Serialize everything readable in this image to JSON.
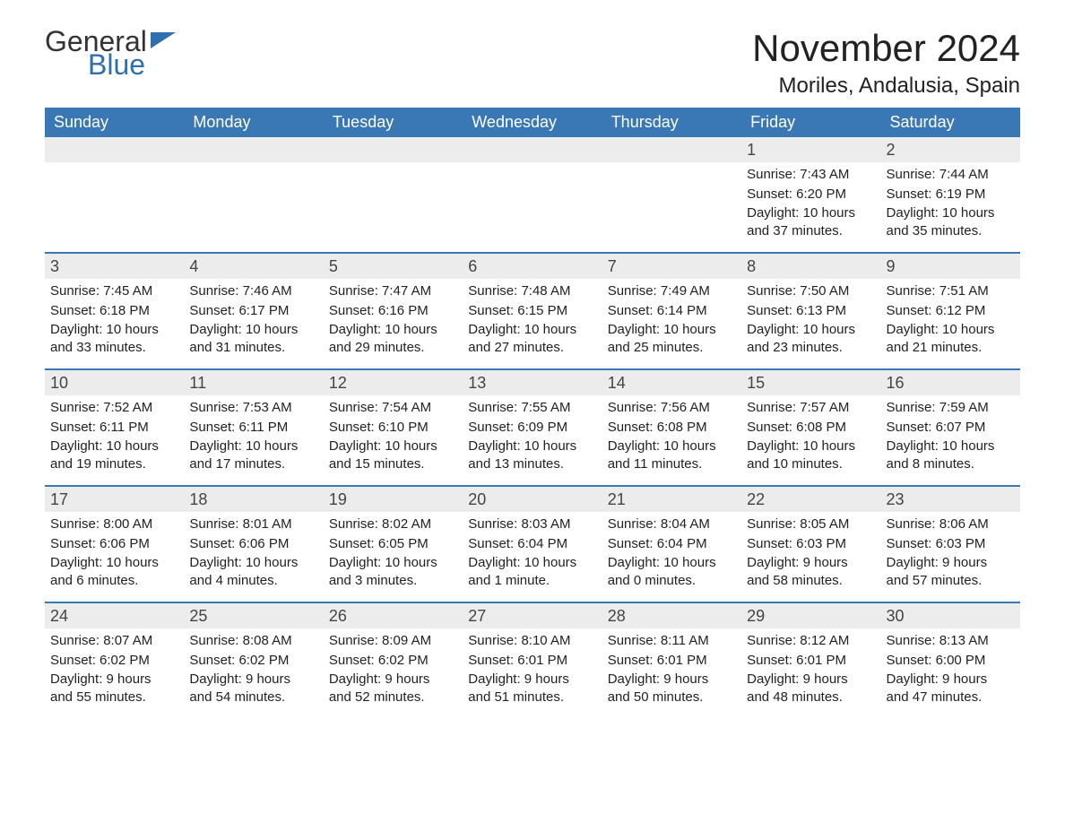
{
  "logo": {
    "word1": "General",
    "word2": "Blue"
  },
  "title": "November 2024",
  "location": "Moriles, Andalusia, Spain",
  "colors": {
    "header_bg": "#3a78b5",
    "header_text": "#ffffff",
    "daynum_bg": "#ececec",
    "row_divider": "#3a78b5",
    "logo_accent": "#2f6fb0"
  },
  "weekdays": [
    "Sunday",
    "Monday",
    "Tuesday",
    "Wednesday",
    "Thursday",
    "Friday",
    "Saturday"
  ],
  "weeks": [
    [
      null,
      null,
      null,
      null,
      null,
      {
        "n": "1",
        "sunrise": "Sunrise: 7:43 AM",
        "sunset": "Sunset: 6:20 PM",
        "daylight": "Daylight: 10 hours and 37 minutes."
      },
      {
        "n": "2",
        "sunrise": "Sunrise: 7:44 AM",
        "sunset": "Sunset: 6:19 PM",
        "daylight": "Daylight: 10 hours and 35 minutes."
      }
    ],
    [
      {
        "n": "3",
        "sunrise": "Sunrise: 7:45 AM",
        "sunset": "Sunset: 6:18 PM",
        "daylight": "Daylight: 10 hours and 33 minutes."
      },
      {
        "n": "4",
        "sunrise": "Sunrise: 7:46 AM",
        "sunset": "Sunset: 6:17 PM",
        "daylight": "Daylight: 10 hours and 31 minutes."
      },
      {
        "n": "5",
        "sunrise": "Sunrise: 7:47 AM",
        "sunset": "Sunset: 6:16 PM",
        "daylight": "Daylight: 10 hours and 29 minutes."
      },
      {
        "n": "6",
        "sunrise": "Sunrise: 7:48 AM",
        "sunset": "Sunset: 6:15 PM",
        "daylight": "Daylight: 10 hours and 27 minutes."
      },
      {
        "n": "7",
        "sunrise": "Sunrise: 7:49 AM",
        "sunset": "Sunset: 6:14 PM",
        "daylight": "Daylight: 10 hours and 25 minutes."
      },
      {
        "n": "8",
        "sunrise": "Sunrise: 7:50 AM",
        "sunset": "Sunset: 6:13 PM",
        "daylight": "Daylight: 10 hours and 23 minutes."
      },
      {
        "n": "9",
        "sunrise": "Sunrise: 7:51 AM",
        "sunset": "Sunset: 6:12 PM",
        "daylight": "Daylight: 10 hours and 21 minutes."
      }
    ],
    [
      {
        "n": "10",
        "sunrise": "Sunrise: 7:52 AM",
        "sunset": "Sunset: 6:11 PM",
        "daylight": "Daylight: 10 hours and 19 minutes."
      },
      {
        "n": "11",
        "sunrise": "Sunrise: 7:53 AM",
        "sunset": "Sunset: 6:11 PM",
        "daylight": "Daylight: 10 hours and 17 minutes."
      },
      {
        "n": "12",
        "sunrise": "Sunrise: 7:54 AM",
        "sunset": "Sunset: 6:10 PM",
        "daylight": "Daylight: 10 hours and 15 minutes."
      },
      {
        "n": "13",
        "sunrise": "Sunrise: 7:55 AM",
        "sunset": "Sunset: 6:09 PM",
        "daylight": "Daylight: 10 hours and 13 minutes."
      },
      {
        "n": "14",
        "sunrise": "Sunrise: 7:56 AM",
        "sunset": "Sunset: 6:08 PM",
        "daylight": "Daylight: 10 hours and 11 minutes."
      },
      {
        "n": "15",
        "sunrise": "Sunrise: 7:57 AM",
        "sunset": "Sunset: 6:08 PM",
        "daylight": "Daylight: 10 hours and 10 minutes."
      },
      {
        "n": "16",
        "sunrise": "Sunrise: 7:59 AM",
        "sunset": "Sunset: 6:07 PM",
        "daylight": "Daylight: 10 hours and 8 minutes."
      }
    ],
    [
      {
        "n": "17",
        "sunrise": "Sunrise: 8:00 AM",
        "sunset": "Sunset: 6:06 PM",
        "daylight": "Daylight: 10 hours and 6 minutes."
      },
      {
        "n": "18",
        "sunrise": "Sunrise: 8:01 AM",
        "sunset": "Sunset: 6:06 PM",
        "daylight": "Daylight: 10 hours and 4 minutes."
      },
      {
        "n": "19",
        "sunrise": "Sunrise: 8:02 AM",
        "sunset": "Sunset: 6:05 PM",
        "daylight": "Daylight: 10 hours and 3 minutes."
      },
      {
        "n": "20",
        "sunrise": "Sunrise: 8:03 AM",
        "sunset": "Sunset: 6:04 PM",
        "daylight": "Daylight: 10 hours and 1 minute."
      },
      {
        "n": "21",
        "sunrise": "Sunrise: 8:04 AM",
        "sunset": "Sunset: 6:04 PM",
        "daylight": "Daylight: 10 hours and 0 minutes."
      },
      {
        "n": "22",
        "sunrise": "Sunrise: 8:05 AM",
        "sunset": "Sunset: 6:03 PM",
        "daylight": "Daylight: 9 hours and 58 minutes."
      },
      {
        "n": "23",
        "sunrise": "Sunrise: 8:06 AM",
        "sunset": "Sunset: 6:03 PM",
        "daylight": "Daylight: 9 hours and 57 minutes."
      }
    ],
    [
      {
        "n": "24",
        "sunrise": "Sunrise: 8:07 AM",
        "sunset": "Sunset: 6:02 PM",
        "daylight": "Daylight: 9 hours and 55 minutes."
      },
      {
        "n": "25",
        "sunrise": "Sunrise: 8:08 AM",
        "sunset": "Sunset: 6:02 PM",
        "daylight": "Daylight: 9 hours and 54 minutes."
      },
      {
        "n": "26",
        "sunrise": "Sunrise: 8:09 AM",
        "sunset": "Sunset: 6:02 PM",
        "daylight": "Daylight: 9 hours and 52 minutes."
      },
      {
        "n": "27",
        "sunrise": "Sunrise: 8:10 AM",
        "sunset": "Sunset: 6:01 PM",
        "daylight": "Daylight: 9 hours and 51 minutes."
      },
      {
        "n": "28",
        "sunrise": "Sunrise: 8:11 AM",
        "sunset": "Sunset: 6:01 PM",
        "daylight": "Daylight: 9 hours and 50 minutes."
      },
      {
        "n": "29",
        "sunrise": "Sunrise: 8:12 AM",
        "sunset": "Sunset: 6:01 PM",
        "daylight": "Daylight: 9 hours and 48 minutes."
      },
      {
        "n": "30",
        "sunrise": "Sunrise: 8:13 AM",
        "sunset": "Sunset: 6:00 PM",
        "daylight": "Daylight: 9 hours and 47 minutes."
      }
    ]
  ]
}
